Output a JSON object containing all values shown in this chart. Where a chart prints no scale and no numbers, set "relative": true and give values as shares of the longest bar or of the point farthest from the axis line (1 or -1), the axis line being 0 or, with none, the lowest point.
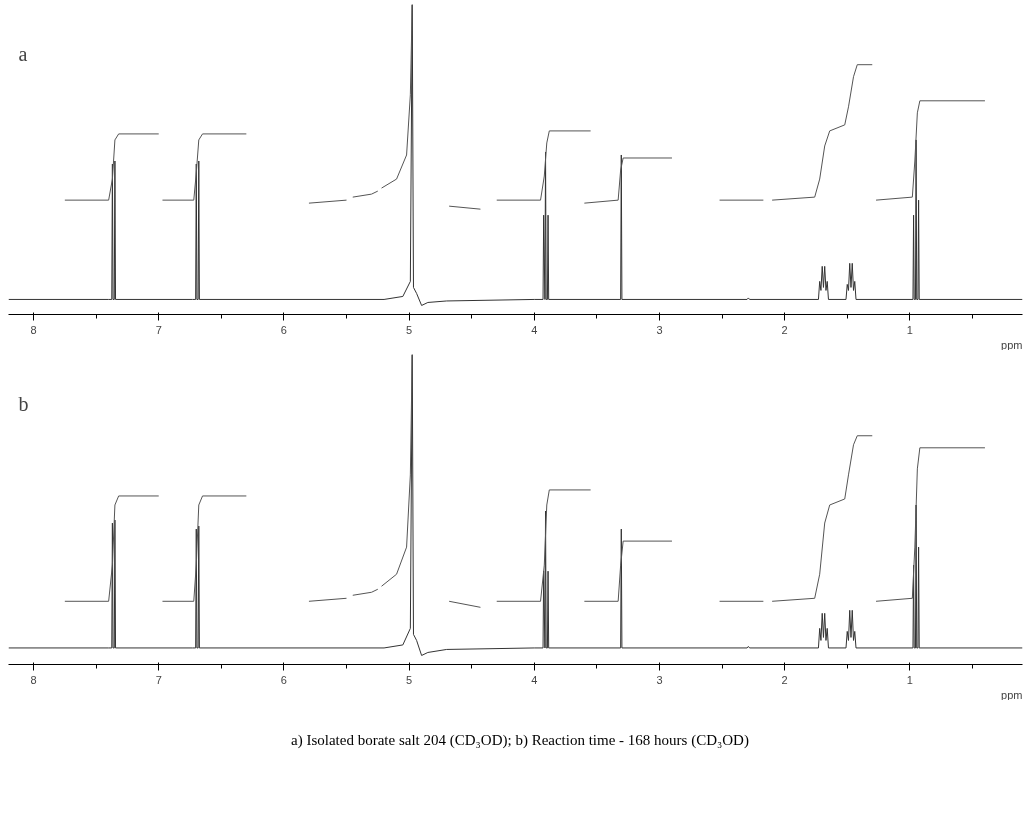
{
  "chart_data": [
    {
      "type": "line",
      "title": "a",
      "xlabel": "ppm",
      "relative": true,
      "xlim": [
        8.2,
        0.1
      ],
      "tick_labels": "x",
      "xticks": [
        8,
        7,
        6,
        5,
        4,
        3,
        2,
        1,
        {
          "value": 7.5,
          "label": null
        },
        {
          "value": 6.5,
          "label": null
        },
        {
          "value": 5.5,
          "label": null
        },
        {
          "value": 4.5,
          "label": null
        },
        {
          "value": 3.5,
          "label": null
        },
        {
          "value": 2.5,
          "label": null
        },
        {
          "value": 1.5,
          "label": null
        },
        {
          "value": 0.5,
          "label": null
        }
      ],
      "series": [
        {
          "color": "#333333",
          "x": [
            8.2,
            7.4,
            7.375,
            7.37,
            7.365,
            7.355,
            7.35,
            7.345,
            6.73,
            6.705,
            6.7,
            6.695,
            6.685,
            6.68,
            6.675,
            5.2,
            5.05,
            4.99,
            4.975,
            4.965,
            4.94,
            4.9,
            4.85,
            4.7,
            4.0,
            3.93,
            3.925,
            3.915,
            3.91,
            3.905,
            3.895,
            3.89,
            3.885,
            3.31,
            3.305,
            3.3,
            2.3,
            2.29,
            2.28,
            1.73,
            1.72,
            1.71,
            1.7,
            1.69,
            1.68,
            1.67,
            1.66,
            1.65,
            1.51,
            1.5,
            1.49,
            1.48,
            1.47,
            1.46,
            1.45,
            1.44,
            1.43,
            0.975,
            0.97,
            0.965,
            0.955,
            0.95,
            0.945,
            0.935,
            0.93,
            0.925,
            0.1
          ],
          "values": [
            0.02,
            0.02,
            0.02,
            0.47,
            0.02,
            0.02,
            0.48,
            0.02,
            0.02,
            0.02,
            0.47,
            0.02,
            0.02,
            0.48,
            0.02,
            0.02,
            0.03,
            0.08,
            1.0,
            0.06,
            0.04,
            0.0,
            0.01,
            0.015,
            0.02,
            0.02,
            0.3,
            0.02,
            0.51,
            0.02,
            0.02,
            0.3,
            0.02,
            0.02,
            0.5,
            0.02,
            0.02,
            0.025,
            0.02,
            0.02,
            0.08,
            0.05,
            0.13,
            0.06,
            0.13,
            0.05,
            0.08,
            0.02,
            0.02,
            0.07,
            0.05,
            0.14,
            0.06,
            0.14,
            0.05,
            0.08,
            0.02,
            0.02,
            0.3,
            0.02,
            0.02,
            0.55,
            0.02,
            0.02,
            0.35,
            0.02,
            0.02
          ]
        },
        {
          "color": "#555555",
          "x": [
            7.75,
            7.4,
            7.37,
            7.35,
            7.32,
            7.0
          ],
          "values": [
            0.35,
            0.35,
            0.42,
            0.55,
            0.57,
            0.57
          ]
        },
        {
          "color": "#555555",
          "x": [
            6.97,
            6.72,
            6.7,
            6.68,
            6.65,
            6.3
          ],
          "values": [
            0.35,
            0.35,
            0.44,
            0.55,
            0.57,
            0.57
          ]
        },
        {
          "color": "#555555",
          "x": [
            5.8,
            5.5
          ],
          "values": [
            0.34,
            0.35
          ]
        },
        {
          "color": "#555555",
          "x": [
            5.45,
            5.3,
            5.25
          ],
          "values": [
            0.36,
            0.37,
            0.38
          ]
        },
        {
          "color": "#555555",
          "x": [
            5.22,
            5.1,
            5.02,
            4.99,
            4.975
          ],
          "values": [
            0.39,
            0.42,
            0.5,
            0.7,
            1.0
          ]
        },
        {
          "color": "#555555",
          "x": [
            4.68,
            4.43
          ],
          "values": [
            0.33,
            0.32
          ]
        },
        {
          "color": "#555555",
          "x": [
            4.3,
            3.95,
            3.92,
            3.9,
            3.88,
            3.55
          ],
          "values": [
            0.35,
            0.35,
            0.43,
            0.54,
            0.58,
            0.58
          ]
        },
        {
          "color": "#555555",
          "x": [
            3.6,
            3.33,
            3.31,
            3.29,
            2.9
          ],
          "values": [
            0.34,
            0.35,
            0.45,
            0.49,
            0.49
          ]
        },
        {
          "color": "#555555",
          "x": [
            2.52,
            2.17
          ],
          "values": [
            0.35,
            0.35
          ]
        },
        {
          "color": "#555555",
          "x": [
            2.1,
            1.76,
            1.72,
            1.68,
            1.64,
            1.52,
            1.49,
            1.45,
            1.42,
            1.3
          ],
          "values": [
            0.35,
            0.36,
            0.42,
            0.53,
            0.58,
            0.6,
            0.66,
            0.76,
            0.8,
            0.8
          ]
        },
        {
          "color": "#555555",
          "x": [
            1.27,
            0.98,
            0.96,
            0.94,
            0.92,
            0.4
          ],
          "values": [
            0.35,
            0.36,
            0.48,
            0.64,
            0.68,
            0.68
          ]
        }
      ]
    },
    {
      "type": "line",
      "title": "b",
      "xlabel": "ppm",
      "relative": true,
      "xlim": [
        8.2,
        0.1
      ],
      "tick_labels": "x",
      "xticks": [
        8,
        7,
        6,
        5,
        4,
        3,
        2,
        1,
        {
          "value": 7.5,
          "label": null
        },
        {
          "value": 6.5,
          "label": null
        },
        {
          "value": 5.5,
          "label": null
        },
        {
          "value": 4.5,
          "label": null
        },
        {
          "value": 3.5,
          "label": null
        },
        {
          "value": 2.5,
          "label": null
        },
        {
          "value": 1.5,
          "label": null
        },
        {
          "value": 0.5,
          "label": null
        }
      ],
      "annotations": [
        "a) Isolated borate salt 204 (CD₃OD); b) Reaction time - 168 hours (CD₃OD)"
      ],
      "series": [
        {
          "color": "#333333",
          "x": [
            8.2,
            7.4,
            7.375,
            7.37,
            7.365,
            7.355,
            7.35,
            7.345,
            6.73,
            6.705,
            6.7,
            6.695,
            6.685,
            6.68,
            6.675,
            5.2,
            5.05,
            4.99,
            4.975,
            4.965,
            4.94,
            4.9,
            4.85,
            4.7,
            4.0,
            3.93,
            3.925,
            3.915,
            3.91,
            3.905,
            3.895,
            3.89,
            3.885,
            3.31,
            3.305,
            3.3,
            2.3,
            2.29,
            2.28,
            1.73,
            1.72,
            1.71,
            1.7,
            1.69,
            1.68,
            1.67,
            1.66,
            1.65,
            1.51,
            1.5,
            1.49,
            1.48,
            1.47,
            1.46,
            1.45,
            1.44,
            1.43,
            0.975,
            0.97,
            0.965,
            0.955,
            0.95,
            0.945,
            0.935,
            0.93,
            0.925,
            0.1
          ],
          "values": [
            0.025,
            0.025,
            0.025,
            0.44,
            0.025,
            0.025,
            0.45,
            0.025,
            0.025,
            0.025,
            0.42,
            0.025,
            0.025,
            0.43,
            0.025,
            0.025,
            0.035,
            0.09,
            1.0,
            0.07,
            0.05,
            0.0,
            0.01,
            0.02,
            0.025,
            0.025,
            0.28,
            0.025,
            0.48,
            0.025,
            0.025,
            0.28,
            0.025,
            0.025,
            0.42,
            0.025,
            0.025,
            0.03,
            0.025,
            0.025,
            0.09,
            0.05,
            0.14,
            0.06,
            0.14,
            0.05,
            0.09,
            0.025,
            0.025,
            0.08,
            0.05,
            0.15,
            0.06,
            0.15,
            0.05,
            0.08,
            0.025,
            0.025,
            0.3,
            0.025,
            0.025,
            0.5,
            0.025,
            0.025,
            0.36,
            0.025,
            0.025
          ]
        },
        {
          "color": "#555555",
          "x": [
            7.75,
            7.4,
            7.37,
            7.35,
            7.32,
            7.0
          ],
          "values": [
            0.18,
            0.18,
            0.3,
            0.5,
            0.53,
            0.53
          ]
        },
        {
          "color": "#555555",
          "x": [
            6.97,
            6.72,
            6.7,
            6.68,
            6.65,
            6.3
          ],
          "values": [
            0.18,
            0.18,
            0.3,
            0.5,
            0.53,
            0.53
          ]
        },
        {
          "color": "#555555",
          "x": [
            5.8,
            5.5
          ],
          "values": [
            0.18,
            0.19
          ]
        },
        {
          "color": "#555555",
          "x": [
            5.45,
            5.3,
            5.25
          ],
          "values": [
            0.2,
            0.21,
            0.22
          ]
        },
        {
          "color": "#555555",
          "x": [
            5.22,
            5.1,
            5.02,
            4.99,
            4.975
          ],
          "values": [
            0.23,
            0.27,
            0.36,
            0.6,
            1.0
          ]
        },
        {
          "color": "#555555",
          "x": [
            4.68,
            4.43
          ],
          "values": [
            0.18,
            0.16
          ]
        },
        {
          "color": "#555555",
          "x": [
            4.3,
            3.95,
            3.92,
            3.9,
            3.88,
            3.55
          ],
          "values": [
            0.18,
            0.18,
            0.3,
            0.5,
            0.55,
            0.55
          ]
        },
        {
          "color": "#555555",
          "x": [
            3.6,
            3.33,
            3.31,
            3.29,
            2.9
          ],
          "values": [
            0.18,
            0.18,
            0.3,
            0.38,
            0.38
          ]
        },
        {
          "color": "#555555",
          "x": [
            2.52,
            2.17
          ],
          "values": [
            0.18,
            0.18
          ]
        },
        {
          "color": "#555555",
          "x": [
            2.1,
            1.76,
            1.72,
            1.68,
            1.64,
            1.52,
            1.49,
            1.45,
            1.42,
            1.3
          ],
          "values": [
            0.18,
            0.19,
            0.27,
            0.44,
            0.5,
            0.52,
            0.6,
            0.7,
            0.73,
            0.73
          ]
        },
        {
          "color": "#555555",
          "x": [
            1.27,
            0.98,
            0.96,
            0.94,
            0.92,
            0.4
          ],
          "values": [
            0.18,
            0.19,
            0.36,
            0.62,
            0.69,
            0.69
          ]
        }
      ]
    }
  ]
}
